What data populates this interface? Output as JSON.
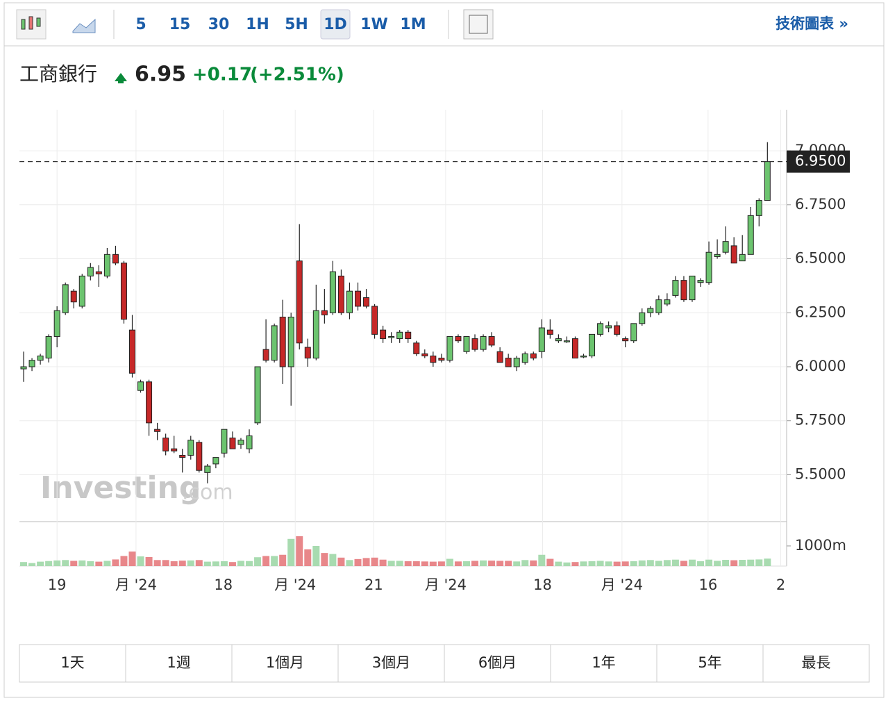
{
  "toolbar": {
    "intervals": [
      "5",
      "15",
      "30",
      "1H",
      "5H",
      "1D",
      "1W",
      "1M"
    ],
    "active": "1D",
    "link": "技術圖表 »"
  },
  "header": {
    "name": "工商銀行",
    "price": "6.95",
    "change": "+0.17",
    "change_pct": "(+2.51%)"
  },
  "watermark": {
    "brand": "Investing",
    "suffix": ".com"
  },
  "ranges": [
    "1天",
    "1週",
    "1個月",
    "3個月",
    "6個月",
    "1年",
    "5年",
    "最長"
  ],
  "chart_data": {
    "type": "candlestick",
    "up_color": "#6cc46f",
    "down_color": "#c62828",
    "volume_up_color": "#a8dbb0",
    "volume_down_color": "#e8878a",
    "ylim": [
      5.286,
      7.19
    ],
    "yticks": [
      {
        "value": 5.5,
        "label": "5.5000"
      },
      {
        "value": 5.75,
        "label": "5.7500"
      },
      {
        "value": 6,
        "label": "6.0000"
      },
      {
        "value": 6.25,
        "label": "6.2500"
      },
      {
        "value": 6.5,
        "label": "6.5000"
      },
      {
        "value": 6.75,
        "label": "6.7500"
      },
      {
        "value": 7,
        "label": "7.0000"
      }
    ],
    "price_line": {
      "value": 6.95,
      "label": "6.9500"
    },
    "grid": true,
    "xlim": [
      -0.5,
      91.3
    ],
    "xticks": [
      {
        "value": 4,
        "label": "19"
      },
      {
        "value": 13.45,
        "label": "月 '24"
      },
      {
        "value": 23.9,
        "label": "18"
      },
      {
        "value": 32.5,
        "label": "月 '24"
      },
      {
        "value": 41.9,
        "label": "21"
      },
      {
        "value": 50.5,
        "label": "月 '24"
      },
      {
        "value": 62.1,
        "label": "18"
      },
      {
        "value": 71.6,
        "label": "月 '24"
      },
      {
        "value": 81.9,
        "label": "16"
      },
      {
        "value": 90.6,
        "label": "2"
      }
    ],
    "ohlc": [
      [
        5.99,
        6.07,
        5.93,
        6.0
      ],
      [
        6.0,
        6.04,
        5.98,
        6.03
      ],
      [
        6.03,
        6.06,
        6.01,
        6.05
      ],
      [
        6.04,
        6.15,
        6.02,
        6.14
      ],
      [
        6.14,
        6.28,
        6.09,
        6.26
      ],
      [
        6.25,
        6.39,
        6.24,
        6.38
      ],
      [
        6.35,
        6.36,
        6.27,
        6.3
      ],
      [
        6.28,
        6.43,
        6.27,
        6.42
      ],
      [
        6.42,
        6.48,
        6.4,
        6.46
      ],
      [
        6.44,
        6.47,
        6.37,
        6.43
      ],
      [
        6.42,
        6.55,
        6.41,
        6.52
      ],
      [
        6.52,
        6.56,
        6.47,
        6.48
      ],
      [
        6.48,
        6.49,
        6.2,
        6.22
      ],
      [
        6.17,
        6.24,
        5.95,
        5.97
      ],
      [
        5.89,
        5.94,
        5.88,
        5.93
      ],
      [
        5.93,
        5.94,
        5.68,
        5.74
      ],
      [
        5.71,
        5.74,
        5.66,
        5.7
      ],
      [
        5.67,
        5.69,
        5.59,
        5.61
      ],
      [
        5.62,
        5.68,
        5.6,
        5.61
      ],
      [
        5.59,
        5.62,
        5.51,
        5.58
      ],
      [
        5.59,
        5.68,
        5.57,
        5.66
      ],
      [
        5.65,
        5.66,
        5.51,
        5.52
      ],
      [
        5.51,
        5.55,
        5.46,
        5.54
      ],
      [
        5.55,
        5.58,
        5.53,
        5.58
      ],
      [
        5.6,
        5.71,
        5.58,
        5.71
      ],
      [
        5.67,
        5.7,
        5.62,
        5.62
      ],
      [
        5.64,
        5.67,
        5.62,
        5.66
      ],
      [
        5.62,
        5.71,
        5.6,
        5.68
      ],
      [
        5.74,
        6.0,
        5.73,
        6.0
      ],
      [
        6.08,
        6.22,
        6.02,
        6.03
      ],
      [
        6.03,
        6.2,
        6.02,
        6.19
      ],
      [
        6.23,
        6.31,
        5.92,
        6.0
      ],
      [
        6.0,
        6.25,
        5.82,
        6.23
      ],
      [
        6.49,
        6.66,
        6.08,
        6.11
      ],
      [
        6.09,
        6.13,
        6.0,
        6.04
      ],
      [
        6.04,
        6.38,
        6.03,
        6.26
      ],
      [
        6.26,
        6.36,
        6.2,
        6.24
      ],
      [
        6.25,
        6.49,
        6.24,
        6.44
      ],
      [
        6.42,
        6.45,
        6.24,
        6.25
      ],
      [
        6.25,
        6.39,
        6.22,
        6.35
      ],
      [
        6.35,
        6.39,
        6.26,
        6.28
      ],
      [
        6.32,
        6.36,
        6.27,
        6.28
      ],
      [
        6.28,
        6.29,
        6.13,
        6.15
      ],
      [
        6.17,
        6.19,
        6.11,
        6.13
      ],
      [
        6.14,
        6.16,
        6.11,
        6.14
      ],
      [
        6.13,
        6.17,
        6.11,
        6.16
      ],
      [
        6.16,
        6.17,
        6.11,
        6.13
      ],
      [
        6.11,
        6.12,
        6.05,
        6.06
      ],
      [
        6.06,
        6.08,
        6.04,
        6.05
      ],
      [
        6.05,
        6.07,
        6.0,
        6.02
      ],
      [
        6.04,
        6.06,
        6.02,
        6.03
      ],
      [
        6.03,
        6.14,
        6.02,
        6.14
      ],
      [
        6.14,
        6.15,
        6.11,
        6.12
      ],
      [
        6.07,
        6.14,
        6.06,
        6.14
      ],
      [
        6.13,
        6.15,
        6.07,
        6.08
      ],
      [
        6.08,
        6.15,
        6.07,
        6.14
      ],
      [
        6.14,
        6.16,
        6.09,
        6.1
      ],
      [
        6.07,
        6.09,
        6.02,
        6.02
      ],
      [
        6.04,
        6.06,
        6.0,
        6.0
      ],
      [
        6.0,
        6.05,
        5.98,
        6.04
      ],
      [
        6.02,
        6.07,
        6.01,
        6.06
      ],
      [
        6.06,
        6.07,
        6.03,
        6.04
      ],
      [
        6.07,
        6.22,
        6.04,
        6.18
      ],
      [
        6.17,
        6.22,
        6.13,
        6.15
      ],
      [
        6.12,
        6.15,
        6.11,
        6.13
      ],
      [
        6.12,
        6.14,
        6.11,
        6.12
      ],
      [
        6.13,
        6.14,
        6.04,
        6.04
      ],
      [
        6.05,
        6.06,
        6.04,
        6.05
      ],
      [
        6.05,
        6.15,
        6.04,
        6.15
      ],
      [
        6.15,
        6.21,
        6.14,
        6.2
      ],
      [
        6.18,
        6.21,
        6.16,
        6.19
      ],
      [
        6.19,
        6.21,
        6.14,
        6.15
      ],
      [
        6.13,
        6.14,
        6.09,
        6.12
      ],
      [
        6.12,
        6.2,
        6.11,
        6.2
      ],
      [
        6.2,
        6.27,
        6.19,
        6.25
      ],
      [
        6.25,
        6.28,
        6.23,
        6.27
      ],
      [
        6.25,
        6.33,
        6.24,
        6.31
      ],
      [
        6.29,
        6.34,
        6.28,
        6.31
      ],
      [
        6.33,
        6.42,
        6.32,
        6.4
      ],
      [
        6.4,
        6.42,
        6.3,
        6.31
      ],
      [
        6.31,
        6.42,
        6.3,
        6.42
      ],
      [
        6.39,
        6.41,
        6.37,
        6.4
      ],
      [
        6.39,
        6.58,
        6.38,
        6.53
      ],
      [
        6.51,
        6.59,
        6.5,
        6.52
      ],
      [
        6.53,
        6.65,
        6.52,
        6.58
      ],
      [
        6.56,
        6.6,
        6.48,
        6.48
      ],
      [
        6.49,
        6.61,
        6.49,
        6.52
      ],
      [
        6.52,
        6.74,
        6.52,
        6.7
      ],
      [
        6.7,
        6.78,
        6.65,
        6.77
      ],
      [
        6.77,
        7.04,
        6.77,
        6.95
      ]
    ],
    "volume": {
      "ylim": [
        0,
        2170
      ],
      "yticks": [
        {
          "value": 1000,
          "label": "1000m"
        }
      ],
      "values": [
        200,
        150,
        220,
        250,
        280,
        300,
        260,
        280,
        240,
        220,
        260,
        330,
        500,
        720,
        480,
        450,
        300,
        300,
        240,
        270,
        280,
        300,
        220,
        230,
        240,
        200,
        260,
        250,
        440,
        500,
        500,
        560,
        1350,
        1480,
        830,
        1000,
        650,
        600,
        420,
        300,
        350,
        400,
        420,
        320,
        260,
        260,
        240,
        240,
        230,
        220,
        230,
        360,
        230,
        240,
        260,
        280,
        270,
        260,
        260,
        230,
        300,
        280,
        560,
        360,
        220,
        180,
        200,
        230,
        240,
        260,
        230,
        220,
        230,
        240,
        280,
        300,
        260,
        300,
        320,
        260,
        320,
        240,
        320,
        260,
        310,
        290,
        310,
        320,
        330,
        370
      ]
    }
  }
}
